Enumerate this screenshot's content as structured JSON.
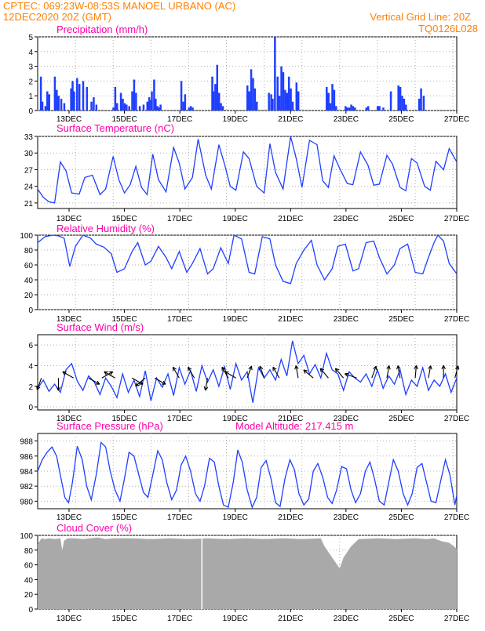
{
  "header": {
    "left_line1": "CPTEC:   069:23W-08:53S   MANOEL URBANO (AC)",
    "left_line2": "12DEC2020 20Z (GMT)",
    "right_line1": "Vertical Grid Line: 20Z",
    "right_line2": "TQ0126L028"
  },
  "colors": {
    "header": "#ff8000",
    "title": "#ff00aa",
    "series": "#1f3fff",
    "cloud": "#a9a9a9",
    "wind": "#000000",
    "grid": "#b0b0b0"
  },
  "date_labels": [
    "13DEC",
    "15DEC",
    "17DEC",
    "19DEC",
    "21DEC",
    "23DEC",
    "25DEC",
    "27DEC"
  ],
  "chart_data": [
    {
      "id": "precip",
      "type": "bar",
      "title": "Precipitation (mm/h)",
      "ylim": [
        0,
        5
      ],
      "yticks": [
        "0",
        "1",
        "2",
        "3",
        "4",
        "5"
      ],
      "x_unit": "days since 12DEC2020 20Z",
      "x": [
        0.08,
        0.12,
        0.2,
        0.25,
        0.3,
        0.45,
        0.5,
        0.55,
        0.62,
        0.7,
        0.88,
        0.92,
        0.96,
        1.04,
        1.1,
        1.2,
        1.3,
        1.42,
        1.48,
        1.55,
        2.0,
        2.05,
        2.1,
        2.2,
        2.25,
        2.3,
        2.35,
        2.42,
        2.5,
        2.55,
        2.6,
        2.7,
        2.8,
        2.9,
        2.95,
        3.0,
        3.02,
        3.08,
        3.12,
        3.17,
        3.2,
        3.25,
        3.8,
        3.85,
        3.9,
        4.0,
        4.05,
        4.1,
        4.62,
        4.65,
        4.7,
        4.75,
        4.8,
        4.85,
        4.9,
        5.55,
        5.6,
        5.65,
        5.7,
        5.75,
        5.8,
        6.12,
        6.18,
        6.22,
        6.28,
        6.35,
        6.4,
        6.45,
        6.5,
        6.55,
        6.6,
        6.65,
        6.7,
        6.75,
        6.85,
        6.9,
        7.65,
        7.7,
        7.75,
        7.8,
        7.85,
        7.9,
        8.15,
        8.2,
        8.25,
        8.3,
        8.35,
        8.4,
        8.7,
        8.75,
        9.0,
        9.05,
        9.15,
        9.35,
        9.55,
        9.6,
        9.65,
        9.7,
        9.75,
        10.1,
        10.15,
        10.22
      ],
      "values": [
        2.3,
        0.6,
        0.3,
        1.3,
        1.1,
        2.3,
        1.4,
        1.0,
        0.8,
        0.5,
        1.5,
        2.0,
        1.3,
        2.2,
        1.8,
        2.0,
        1.6,
        0.6,
        0.9,
        0.4,
        0.2,
        1.6,
        0.5,
        1.2,
        0.8,
        0.5,
        0.4,
        0.3,
        1.3,
        2.1,
        1.2,
        0.3,
        0.4,
        0.6,
        0.9,
        0.7,
        1.3,
        2.1,
        0.8,
        0.3,
        0.2,
        0.4,
        2.0,
        0.6,
        1.1,
        0.2,
        0.3,
        0.2,
        2.3,
        1.3,
        1.8,
        3.1,
        1.2,
        0.5,
        0.3,
        1.7,
        1.3,
        2.8,
        2.2,
        1.5,
        0.6,
        1.2,
        1.1,
        0.8,
        5.0,
        2.3,
        1.0,
        3.0,
        2.6,
        1.4,
        1.2,
        2.3,
        1.5,
        0.6,
        1.9,
        1.3,
        1.6,
        1.2,
        0.5,
        1.8,
        1.4,
        0.3,
        0.3,
        0.2,
        0.2,
        0.4,
        0.3,
        0.2,
        0.2,
        0.3,
        0.3,
        0.3,
        0.2,
        1.3,
        1.7,
        1.6,
        1.0,
        0.8,
        0.4,
        0.8,
        1.5,
        1.0
      ]
    },
    {
      "id": "temp",
      "type": "line",
      "title": "Surface Temperature (nC)",
      "ylim": [
        20,
        33
      ],
      "yticks": [
        "21",
        "24",
        "27",
        "30",
        "33"
      ],
      "x_unit": "days since 12DEC2020 20Z",
      "x": [
        0,
        0.15,
        0.3,
        0.45,
        0.6,
        0.75,
        0.9,
        1.1,
        1.25,
        1.45,
        1.65,
        1.8,
        2.0,
        2.15,
        2.3,
        2.45,
        2.6,
        2.75,
        2.9,
        3.05,
        3.2,
        3.4,
        3.6,
        3.75,
        3.9,
        4.1,
        4.25,
        4.45,
        4.6,
        4.8,
        4.95,
        5.1,
        5.25,
        5.45,
        5.6,
        5.8,
        6.0,
        6.15,
        6.3,
        6.5,
        6.7,
        6.85,
        7.0,
        7.2,
        7.4,
        7.55,
        7.7,
        7.85,
        8.0,
        8.2,
        8.35,
        8.55,
        8.75,
        8.9,
        9.05,
        9.25,
        9.4,
        9.6,
        9.75,
        9.9,
        10.05,
        10.25,
        10.4,
        10.55,
        10.75,
        10.9,
        11.1
      ],
      "values": [
        23.5,
        22,
        21.2,
        21,
        28.4,
        26.8,
        22.8,
        22.6,
        25.6,
        26,
        22.5,
        23.5,
        29.4,
        25.2,
        22.8,
        24.3,
        27.6,
        23.8,
        22.5,
        29.8,
        25.2,
        23,
        31,
        28.2,
        23.5,
        25.6,
        32.5,
        26,
        23.5,
        31.5,
        28,
        24,
        23.3,
        30.2,
        29,
        24,
        22.8,
        31.7,
        26.5,
        23.5,
        33.4,
        29,
        23.8,
        32.3,
        31.5,
        25,
        23.8,
        29.5,
        27.2,
        24.5,
        24.3,
        30.2,
        27.8,
        24.2,
        24.4,
        29.6,
        28,
        23.8,
        23.2,
        29,
        28.2,
        24,
        23.3,
        28.5,
        27,
        30.8,
        28.4
      ]
    },
    {
      "id": "rh",
      "type": "line",
      "title": "Relative Humidity (%)",
      "ylim": [
        0,
        100
      ],
      "yticks": [
        "0",
        "20",
        "40",
        "60",
        "80",
        "100"
      ],
      "x_unit": "days since 12DEC2020 20Z",
      "x": [
        0,
        0.2,
        0.4,
        0.55,
        0.7,
        0.85,
        1.0,
        1.2,
        1.4,
        1.55,
        1.75,
        1.95,
        2.1,
        2.3,
        2.5,
        2.65,
        2.85,
        3.0,
        3.2,
        3.4,
        3.55,
        3.75,
        3.95,
        4.1,
        4.3,
        4.5,
        4.65,
        4.85,
        5.05,
        5.2,
        5.4,
        5.6,
        5.75,
        5.95,
        6.15,
        6.3,
        6.5,
        6.7,
        6.85,
        7.05,
        7.25,
        7.4,
        7.6,
        7.8,
        7.95,
        8.15,
        8.35,
        8.5,
        8.7,
        8.9,
        9.05,
        9.25,
        9.45,
        9.6,
        9.8,
        10.0,
        10.2,
        10.35,
        10.5,
        10.6,
        10.75,
        10.9,
        11.1
      ],
      "values": [
        90,
        98,
        100,
        99,
        96,
        58,
        85,
        100,
        96,
        88,
        84,
        75,
        50,
        55,
        78,
        90,
        60,
        65,
        85,
        70,
        55,
        78,
        50,
        62,
        82,
        48,
        55,
        83,
        62,
        100,
        95,
        50,
        48,
        98,
        95,
        60,
        38,
        35,
        62,
        80,
        93,
        60,
        40,
        55,
        85,
        88,
        52,
        55,
        90,
        92,
        70,
        48,
        60,
        82,
        88,
        50,
        48,
        70,
        90,
        100,
        92,
        62,
        48
      ]
    },
    {
      "id": "wind",
      "type": "line",
      "title": "Surface Wind (m/s)",
      "ylim": [
        -0.3,
        7
      ],
      "yticks": [
        "0",
        "2",
        "4",
        "6"
      ],
      "x_unit": "days since 12DEC2020 20Z",
      "x": [
        0,
        0.15,
        0.3,
        0.45,
        0.6,
        0.75,
        0.9,
        1.05,
        1.2,
        1.35,
        1.5,
        1.65,
        1.8,
        1.95,
        2.1,
        2.25,
        2.4,
        2.55,
        2.7,
        2.85,
        3.0,
        3.15,
        3.3,
        3.45,
        3.6,
        3.75,
        3.9,
        4.05,
        4.2,
        4.35,
        4.5,
        4.65,
        4.8,
        4.95,
        5.1,
        5.25,
        5.4,
        5.55,
        5.7,
        5.85,
        6.0,
        6.15,
        6.3,
        6.45,
        6.6,
        6.75,
        6.9,
        7.05,
        7.2,
        7.35,
        7.5,
        7.65,
        7.8,
        7.95,
        8.1,
        8.25,
        8.4,
        8.55,
        8.7,
        8.85,
        9.0,
        9.15,
        9.3,
        9.45,
        9.6,
        9.75,
        9.9,
        10.05,
        10.2,
        10.35,
        10.5,
        10.65,
        10.8,
        10.95,
        11.1
      ],
      "values": [
        1.8,
        2.6,
        1.5,
        2.2,
        1.4,
        3.6,
        4.2,
        2.5,
        1.6,
        3.0,
        2.4,
        1.2,
        2.8,
        2.0,
        0.9,
        3.2,
        1.4,
        2.6,
        1.0,
        3.5,
        0.6,
        2.8,
        1.9,
        3.2,
        1.1,
        3.8,
        2.2,
        3.5,
        1.5,
        4.0,
        2.4,
        3.6,
        2.0,
        3.9,
        1.7,
        4.2,
        2.6,
        3.4,
        0.4,
        3.8,
        2.8,
        3.6,
        2.6,
        4.6,
        3.0,
        6.4,
        4.2,
        5.0,
        3.2,
        4.1,
        2.8,
        5.2,
        3.6,
        3.2,
        1.6,
        3.4,
        2.8,
        2.4,
        3.2,
        2.0,
        3.6,
        1.8,
        3.0,
        2.2,
        3.6,
        1.2,
        2.6,
        2.0,
        3.8,
        1.6,
        2.6,
        2.0,
        3.2,
        1.4,
        2.8
      ],
      "arrows": [
        {
          "x": 0.1,
          "dir": 200
        },
        {
          "x": 0.55,
          "dir": 180
        },
        {
          "x": 0.95,
          "dir": 300
        },
        {
          "x": 1.35,
          "dir": 120
        },
        {
          "x": 1.7,
          "dir": 60
        },
        {
          "x": 2.05,
          "dir": 300
        },
        {
          "x": 2.5,
          "dir": 120
        },
        {
          "x": 2.85,
          "dir": 230
        },
        {
          "x": 3.1,
          "dir": 120
        },
        {
          "x": 3.75,
          "dir": 330
        },
        {
          "x": 4.15,
          "dir": 330
        },
        {
          "x": 4.5,
          "dir": 190
        },
        {
          "x": 5.05,
          "dir": 330
        },
        {
          "x": 5.25,
          "dir": 300
        },
        {
          "x": 5.55,
          "dir": 20
        },
        {
          "x": 6.0,
          "dir": 340
        },
        {
          "x": 6.4,
          "dir": 330
        },
        {
          "x": 6.9,
          "dir": 350
        },
        {
          "x": 7.3,
          "dir": 310
        },
        {
          "x": 7.7,
          "dir": 320
        },
        {
          "x": 8.1,
          "dir": 320
        },
        {
          "x": 8.45,
          "dir": 290
        },
        {
          "x": 8.85,
          "dir": 20
        },
        {
          "x": 9.25,
          "dir": 10
        },
        {
          "x": 9.6,
          "dir": 350
        },
        {
          "x": 10.0,
          "dir": 5
        },
        {
          "x": 10.35,
          "dir": 10
        },
        {
          "x": 10.75,
          "dir": 0
        },
        {
          "x": 11.05,
          "dir": 15
        }
      ]
    },
    {
      "id": "pres",
      "type": "line",
      "title": "Surface Pressure (hPa)",
      "annotation": "Model Altitude: 217.415  m",
      "ylim": [
        979,
        989
      ],
      "yticks": [
        "980",
        "982",
        "984",
        "986",
        "988"
      ],
      "x_unit": "days since 12DEC2020 20Z",
      "x": [
        0,
        0.12,
        0.25,
        0.38,
        0.5,
        0.62,
        0.72,
        0.82,
        0.92,
        1.05,
        1.18,
        1.3,
        1.42,
        1.55,
        1.68,
        1.8,
        1.92,
        2.05,
        2.18,
        2.3,
        2.42,
        2.55,
        2.68,
        2.8,
        2.92,
        3.05,
        3.18,
        3.3,
        3.42,
        3.55,
        3.68,
        3.8,
        3.92,
        4.05,
        4.18,
        4.3,
        4.42,
        4.55,
        4.68,
        4.8,
        4.92,
        5.05,
        5.18,
        5.3,
        5.42,
        5.55,
        5.68,
        5.8,
        5.92,
        6.05,
        6.18,
        6.3,
        6.42,
        6.55,
        6.68,
        6.8,
        6.92,
        7.05,
        7.18,
        7.3,
        7.42,
        7.55,
        7.68,
        7.8,
        7.92,
        8.05,
        8.18,
        8.3,
        8.42,
        8.55,
        8.68,
        8.8,
        8.92,
        9.05,
        9.18,
        9.3,
        9.42,
        9.55,
        9.68,
        9.8,
        9.92,
        10.05,
        10.18,
        10.3,
        10.42,
        10.55,
        10.68,
        10.8,
        10.92,
        11.05,
        11.1
      ],
      "values": [
        984,
        985.5,
        986.5,
        987.2,
        986,
        983,
        980.5,
        979.8,
        982.5,
        987.3,
        985.5,
        982,
        980.2,
        983.5,
        987.8,
        987.2,
        984,
        981.5,
        980,
        983,
        986.5,
        986,
        983.5,
        981.2,
        980.5,
        983.5,
        986.7,
        985.5,
        982.5,
        980.2,
        981.5,
        984.8,
        986,
        984,
        981,
        980,
        982,
        985.7,
        985.2,
        982,
        979.5,
        979.2,
        982.5,
        986.8,
        985.2,
        981.5,
        979.2,
        980.5,
        984.5,
        985.4,
        983,
        979.8,
        979.3,
        983,
        985.5,
        984.2,
        981,
        979.5,
        980.3,
        984,
        985,
        983.2,
        980.5,
        979.7,
        981.5,
        984.6,
        984.3,
        981.5,
        979.8,
        981,
        984,
        985.2,
        983,
        980,
        979.5,
        982.5,
        985.5,
        984,
        981,
        979.5,
        981,
        984.5,
        985,
        982.5,
        980,
        979.8,
        982.8,
        985.5,
        983.5,
        979.5,
        980.8
      ]
    },
    {
      "id": "cloud",
      "type": "area",
      "title": "Cloud Cover (%)",
      "ylim": [
        0,
        100
      ],
      "yticks": [
        "0",
        "20",
        "40",
        "60",
        "80",
        "100"
      ],
      "x_unit": "days since 12DEC2020 20Z",
      "x": [
        0,
        0.1,
        0.2,
        0.3,
        0.45,
        0.6,
        0.65,
        0.7,
        0.8,
        1.0,
        1.2,
        1.4,
        1.6,
        1.8,
        2.0,
        2.5,
        3.0,
        3.5,
        4.0,
        4.5,
        5.0,
        5.5,
        6.0,
        6.5,
        7.0,
        7.5,
        7.6,
        7.8,
        8.0,
        8.1,
        8.3,
        8.5,
        9.0,
        9.5,
        10.0,
        10.3,
        10.5,
        10.7,
        10.9,
        11.0,
        11.1
      ],
      "values": [
        88,
        96,
        95,
        96,
        95,
        96,
        80,
        93,
        96,
        96,
        95,
        96,
        97,
        95,
        96,
        96,
        95,
        96,
        95,
        96,
        95,
        96,
        95,
        96,
        95,
        96,
        85,
        70,
        55,
        70,
        85,
        95,
        96,
        95,
        96,
        95,
        96,
        92,
        90,
        86,
        82
      ]
    }
  ]
}
